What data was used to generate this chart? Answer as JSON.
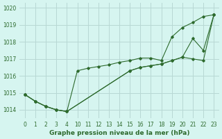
{
  "title": "Graphe pression niveau de la mer (hPa)",
  "bg_color": "#d6f5f0",
  "grid_color": "#b8d8d4",
  "line_color": "#2d6a2d",
  "ylim": [
    1013.5,
    1020.3
  ],
  "yticks": [
    1014,
    1015,
    1016,
    1017,
    1018,
    1019,
    1020
  ],
  "xtick_labels": [
    "0",
    "1",
    "2",
    "3",
    "4",
    "10",
    "11",
    "12",
    "13",
    "14",
    "15",
    "16",
    "17",
    "18",
    "19",
    "20",
    "21",
    "22",
    "23"
  ],
  "xtick_pos": [
    0,
    1,
    2,
    3,
    4,
    5,
    6,
    7,
    8,
    9,
    10,
    11,
    12,
    13,
    14,
    15,
    16,
    17,
    18
  ],
  "series": [
    {
      "x": [
        0,
        1,
        2,
        3,
        4,
        5,
        6,
        7,
        8,
        9,
        10,
        11,
        12,
        13,
        14,
        15,
        16,
        17,
        18
      ],
      "y": [
        1014.9,
        1014.5,
        1014.2,
        1014.0,
        1013.9,
        1016.3,
        1016.45,
        1016.55,
        1016.65,
        1016.8,
        1016.9,
        1017.05,
        1017.05,
        1016.9,
        1018.3,
        1018.85,
        1019.15,
        1019.5,
        1019.6
      ],
      "markers": [
        0,
        1,
        2,
        3,
        4,
        5,
        6,
        7,
        8,
        9,
        10,
        11,
        12,
        13,
        14,
        15,
        16,
        17,
        18
      ]
    },
    {
      "x": [
        0,
        1,
        2,
        3,
        4,
        10,
        11,
        12,
        13,
        14,
        15,
        16,
        17,
        18
      ],
      "y": [
        1014.9,
        1014.5,
        1014.2,
        1014.0,
        1013.9,
        1016.3,
        1016.5,
        1016.6,
        1016.7,
        1016.9,
        1017.1,
        1017.0,
        1016.9,
        1019.6
      ],
      "markers": [
        0,
        1,
        2,
        3,
        4,
        5,
        6,
        7,
        8,
        9,
        10,
        11,
        12,
        13
      ]
    },
    {
      "x": [
        0,
        1,
        2,
        3,
        4,
        10,
        11,
        12,
        13,
        14,
        15,
        16,
        17,
        18
      ],
      "y": [
        1014.9,
        1014.5,
        1014.2,
        1014.0,
        1013.9,
        1016.3,
        1016.5,
        1016.6,
        1016.7,
        1016.9,
        1017.1,
        1018.2,
        1017.5,
        1019.6
      ],
      "markers": [
        0,
        1,
        2,
        3,
        4,
        5,
        6,
        7,
        8,
        9,
        10,
        11,
        12,
        13
      ]
    }
  ]
}
